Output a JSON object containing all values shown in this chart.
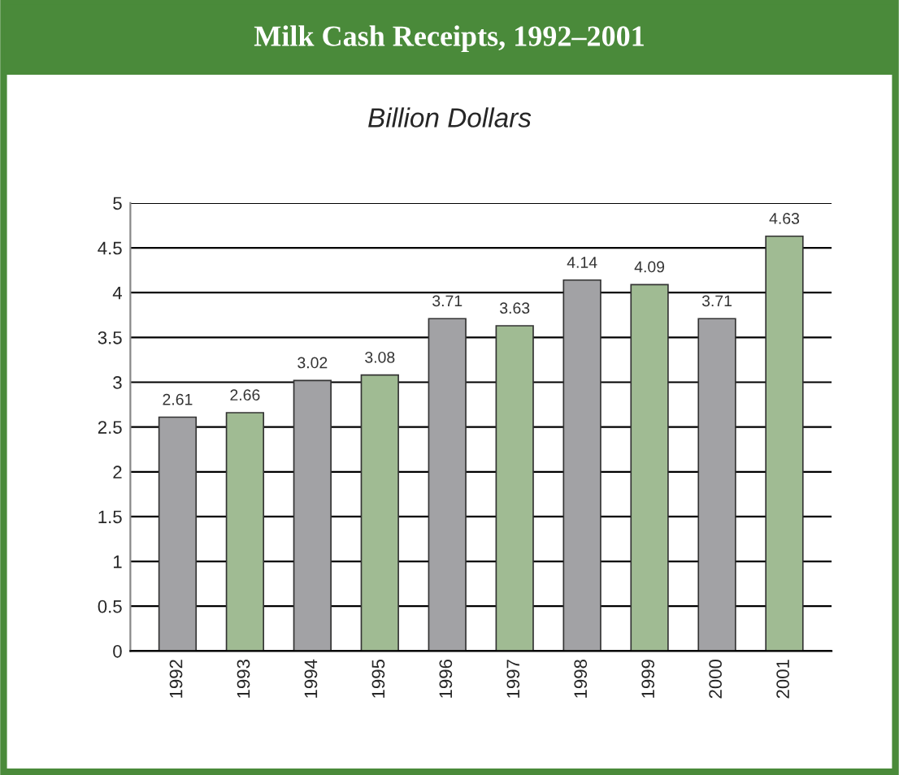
{
  "chart_data": {
    "type": "bar",
    "title": "Milk Cash Receipts, 1992–2001",
    "subtitle": "Billion Dollars",
    "categories": [
      "1992",
      "1993",
      "1994",
      "1995",
      "1996",
      "1997",
      "1998",
      "1999",
      "2000",
      "2001"
    ],
    "values": [
      2.61,
      2.66,
      3.02,
      3.08,
      3.71,
      3.63,
      4.14,
      4.09,
      3.71,
      4.63
    ],
    "colors": [
      "#a2a2a6",
      "#9dc28c",
      "#a2a2a6",
      "#9dc28c",
      "#a2a2a6",
      "#9dc28c",
      "#a2a2a6",
      "#9dc28c",
      "#a2a2a6",
      "#9dc28c"
    ],
    "ylim": [
      0,
      5
    ],
    "yticks": [
      0,
      0.5,
      1,
      1.5,
      2,
      2.5,
      3,
      3.5,
      4,
      4.5,
      5
    ],
    "grid": "y",
    "data_labels": true
  }
}
